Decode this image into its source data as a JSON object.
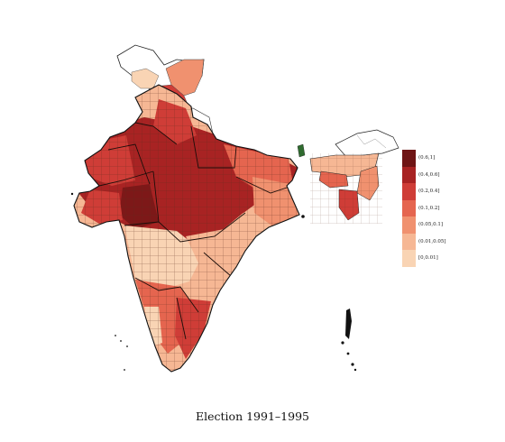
{
  "caption": "Election 1991–1995",
  "legend": {
    "placement": "right",
    "classes": [
      {
        "label": "(0.6,1]",
        "color": "#6f1515"
      },
      {
        "label": "(0.4,0.6]",
        "color": "#a82323"
      },
      {
        "label": "(0.2,0.4]",
        "color": "#cf3d37"
      },
      {
        "label": "(0.1,0.2]",
        "color": "#e5654f"
      },
      {
        "label": "(0.05,0.1]",
        "color": "#f0916f"
      },
      {
        "label": "(0.01,0.05]",
        "color": "#f6b794"
      },
      {
        "label": "[0,0.01]",
        "color": "#f9d4b4"
      }
    ]
  },
  "colors": {
    "border": "#2a1a14",
    "no_data": "#ffffff"
  }
}
